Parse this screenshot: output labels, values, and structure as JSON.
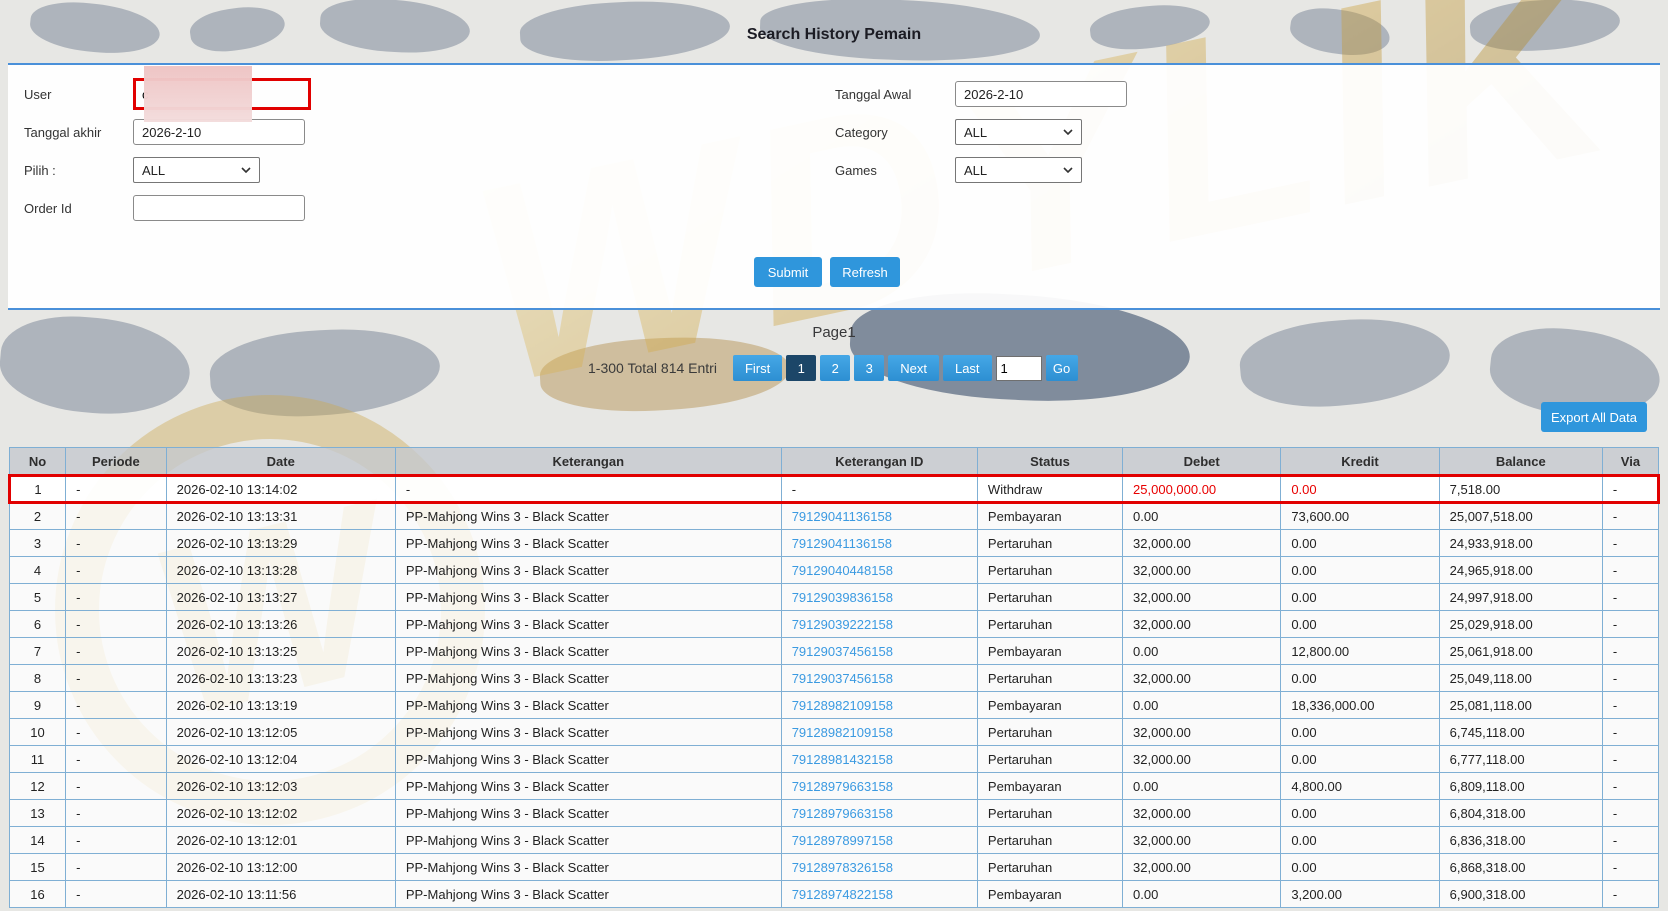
{
  "page_title": "Search History Pemain",
  "form": {
    "user": {
      "label": "User",
      "value": "c"
    },
    "tanggal_akhir": {
      "label": "Tanggal akhir",
      "value": "2026-2-10"
    },
    "pilih": {
      "label": "Pilih :",
      "value": "ALL"
    },
    "order_id": {
      "label": "Order Id",
      "value": ""
    },
    "tanggal_awal": {
      "label": "Tanggal Awal",
      "value": "2026-2-10"
    },
    "category": {
      "label": "Category",
      "value": "ALL"
    },
    "games": {
      "label": "Games",
      "value": "ALL"
    },
    "submit_label": "Submit",
    "refresh_label": "Refresh"
  },
  "pagination": {
    "page_label": "Page1",
    "entries_text": "1-300 Total 814 Entri",
    "buttons": [
      "First",
      "1",
      "2",
      "3",
      "Next",
      "Last"
    ],
    "active_page": "1",
    "goto_value": "1",
    "go_label": "Go"
  },
  "export_label": "Export All Data",
  "watermark_text": "WDYLIK",
  "colors": {
    "accent_blue": "#2f96dc",
    "active_page_bg": "#1c4668",
    "annotation_red": "#e10000",
    "link_blue": "#3b9ae1",
    "gold": "#d4af37"
  },
  "table": {
    "columns": [
      "No",
      "Periode",
      "Date",
      "Keterangan",
      "Keterangan ID",
      "Status",
      "Debet",
      "Kredit",
      "Balance",
      "Via"
    ],
    "column_keys": [
      "no",
      "periode",
      "date",
      "keterangan",
      "keterangan_id",
      "status",
      "debet",
      "kredit",
      "balance",
      "via"
    ],
    "rows": [
      {
        "no": "1",
        "periode": "-",
        "date": "2026-02-10 13:14:02",
        "keterangan": "-",
        "keterangan_id": "-",
        "status": "Withdraw",
        "debet": "25,000,000.00",
        "kredit": "0.00",
        "balance": "7,518.00",
        "via": "-",
        "highlighted": true,
        "red_cells": [
          "debet",
          "kredit"
        ]
      },
      {
        "no": "2",
        "periode": "-",
        "date": "2026-02-10 13:13:31",
        "keterangan": "PP-Mahjong Wins 3 - Black Scatter",
        "keterangan_id": "79129041136158",
        "status": "Pembayaran",
        "debet": "0.00",
        "kredit": "73,600.00",
        "balance": "25,007,518.00",
        "via": "-"
      },
      {
        "no": "3",
        "periode": "-",
        "date": "2026-02-10 13:13:29",
        "keterangan": "PP-Mahjong Wins 3 - Black Scatter",
        "keterangan_id": "79129041136158",
        "status": "Pertaruhan",
        "debet": "32,000.00",
        "kredit": "0.00",
        "balance": "24,933,918.00",
        "via": "-"
      },
      {
        "no": "4",
        "periode": "-",
        "date": "2026-02-10 13:13:28",
        "keterangan": "PP-Mahjong Wins 3 - Black Scatter",
        "keterangan_id": "79129040448158",
        "status": "Pertaruhan",
        "debet": "32,000.00",
        "kredit": "0.00",
        "balance": "24,965,918.00",
        "via": "-"
      },
      {
        "no": "5",
        "periode": "-",
        "date": "2026-02-10 13:13:27",
        "keterangan": "PP-Mahjong Wins 3 - Black Scatter",
        "keterangan_id": "79129039836158",
        "status": "Pertaruhan",
        "debet": "32,000.00",
        "kredit": "0.00",
        "balance": "24,997,918.00",
        "via": "-"
      },
      {
        "no": "6",
        "periode": "-",
        "date": "2026-02-10 13:13:26",
        "keterangan": "PP-Mahjong Wins 3 - Black Scatter",
        "keterangan_id": "79129039222158",
        "status": "Pertaruhan",
        "debet": "32,000.00",
        "kredit": "0.00",
        "balance": "25,029,918.00",
        "via": "-"
      },
      {
        "no": "7",
        "periode": "-",
        "date": "2026-02-10 13:13:25",
        "keterangan": "PP-Mahjong Wins 3 - Black Scatter",
        "keterangan_id": "79129037456158",
        "status": "Pembayaran",
        "debet": "0.00",
        "kredit": "12,800.00",
        "balance": "25,061,918.00",
        "via": "-"
      },
      {
        "no": "8",
        "periode": "-",
        "date": "2026-02-10 13:13:23",
        "keterangan": "PP-Mahjong Wins 3 - Black Scatter",
        "keterangan_id": "79129037456158",
        "status": "Pertaruhan",
        "debet": "32,000.00",
        "kredit": "0.00",
        "balance": "25,049,118.00",
        "via": "-"
      },
      {
        "no": "9",
        "periode": "-",
        "date": "2026-02-10 13:13:19",
        "keterangan": "PP-Mahjong Wins 3 - Black Scatter",
        "keterangan_id": "79128982109158",
        "status": "Pembayaran",
        "debet": "0.00",
        "kredit": "18,336,000.00",
        "balance": "25,081,118.00",
        "via": "-"
      },
      {
        "no": "10",
        "periode": "-",
        "date": "2026-02-10 13:12:05",
        "keterangan": "PP-Mahjong Wins 3 - Black Scatter",
        "keterangan_id": "79128982109158",
        "status": "Pertaruhan",
        "debet": "32,000.00",
        "kredit": "0.00",
        "balance": "6,745,118.00",
        "via": "-"
      },
      {
        "no": "11",
        "periode": "-",
        "date": "2026-02-10 13:12:04",
        "keterangan": "PP-Mahjong Wins 3 - Black Scatter",
        "keterangan_id": "79128981432158",
        "status": "Pertaruhan",
        "debet": "32,000.00",
        "kredit": "0.00",
        "balance": "6,777,118.00",
        "via": "-"
      },
      {
        "no": "12",
        "periode": "-",
        "date": "2026-02-10 13:12:03",
        "keterangan": "PP-Mahjong Wins 3 - Black Scatter",
        "keterangan_id": "79128979663158",
        "status": "Pembayaran",
        "debet": "0.00",
        "kredit": "4,800.00",
        "balance": "6,809,118.00",
        "via": "-"
      },
      {
        "no": "13",
        "periode": "-",
        "date": "2026-02-10 13:12:02",
        "keterangan": "PP-Mahjong Wins 3 - Black Scatter",
        "keterangan_id": "79128979663158",
        "status": "Pertaruhan",
        "debet": "32,000.00",
        "kredit": "0.00",
        "balance": "6,804,318.00",
        "via": "-"
      },
      {
        "no": "14",
        "periode": "-",
        "date": "2026-02-10 13:12:01",
        "keterangan": "PP-Mahjong Wins 3 - Black Scatter",
        "keterangan_id": "79128978997158",
        "status": "Pertaruhan",
        "debet": "32,000.00",
        "kredit": "0.00",
        "balance": "6,836,318.00",
        "via": "-"
      },
      {
        "no": "15",
        "periode": "-",
        "date": "2026-02-10 13:12:00",
        "keterangan": "PP-Mahjong Wins 3 - Black Scatter",
        "keterangan_id": "79128978326158",
        "status": "Pertaruhan",
        "debet": "32,000.00",
        "kredit": "0.00",
        "balance": "6,868,318.00",
        "via": "-"
      },
      {
        "no": "16",
        "periode": "-",
        "date": "2026-02-10 13:11:56",
        "keterangan": "PP-Mahjong Wins 3 - Black Scatter",
        "keterangan_id": "79128974822158",
        "status": "Pembayaran",
        "debet": "0.00",
        "kredit": "3,200.00",
        "balance": "6,900,318.00",
        "via": "-"
      }
    ]
  }
}
